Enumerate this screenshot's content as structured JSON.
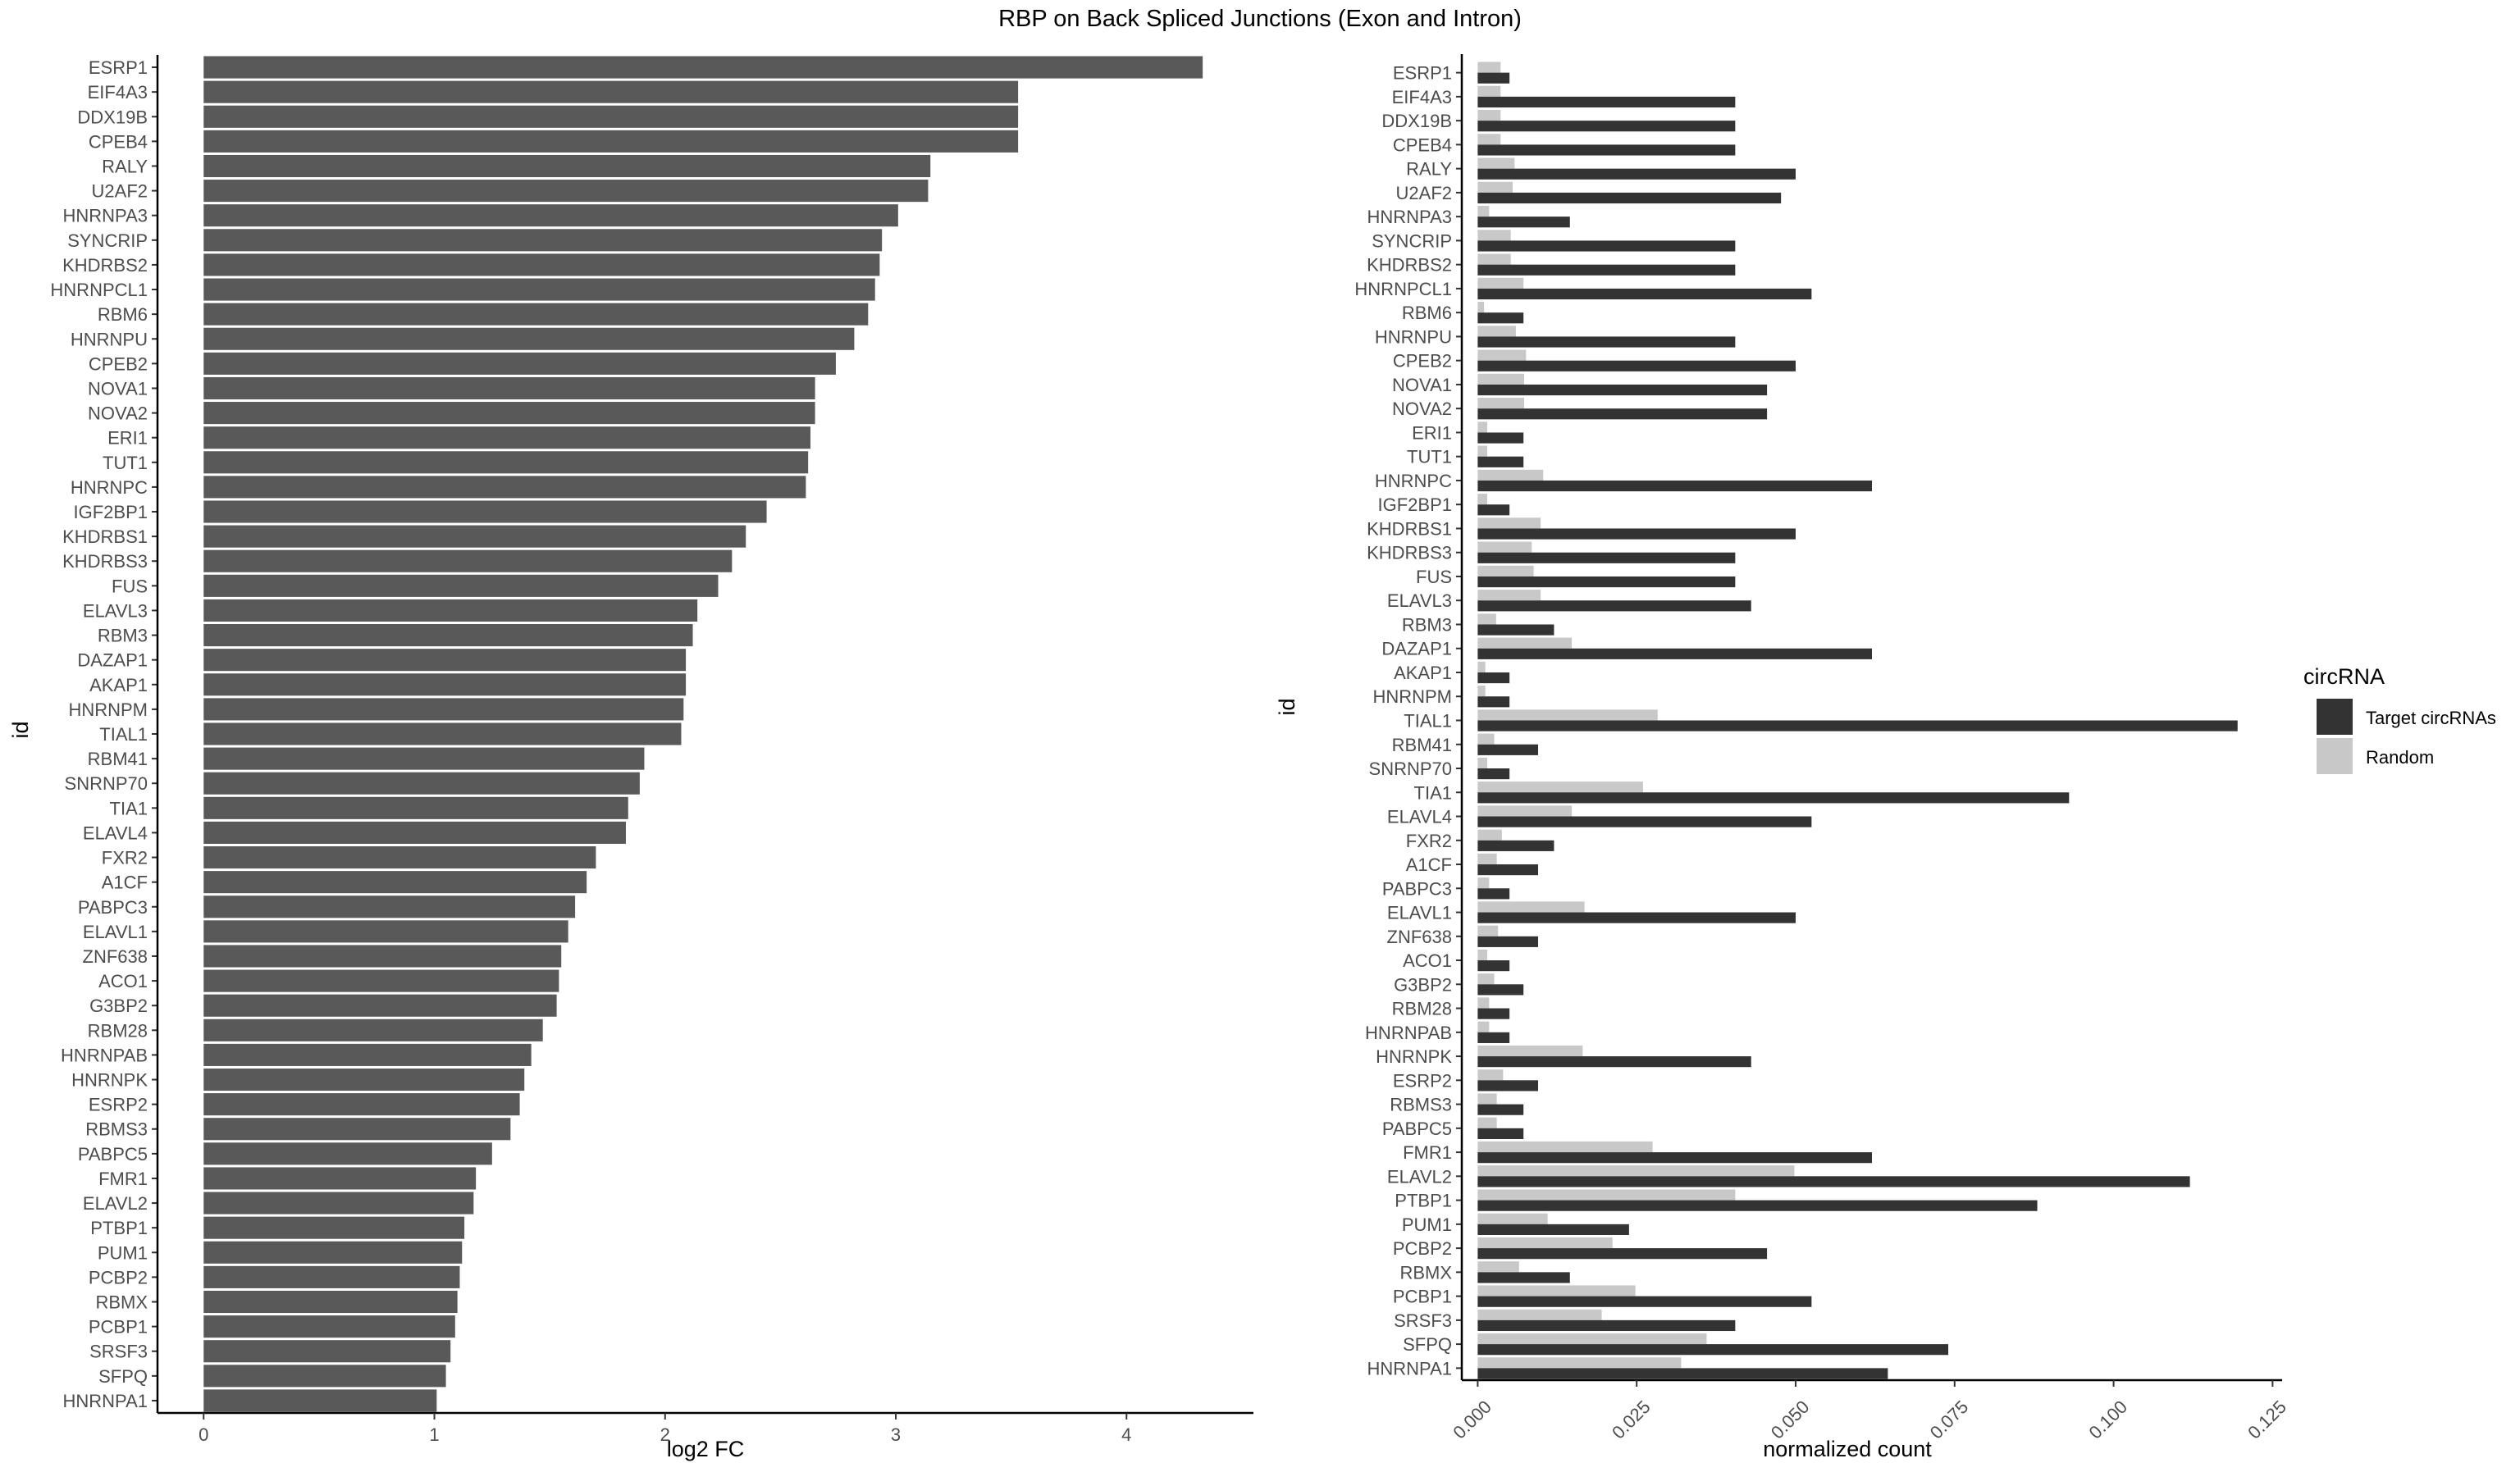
{
  "title": "RBP on Back Spliced Junctions (Exon and Intron)",
  "colors": {
    "bar_left": "#595959",
    "target": "#333333",
    "random": "#c8c8c8",
    "axis": "#000000",
    "tick_text": "#4d4d4d"
  },
  "chart_data": [
    {
      "type": "bar",
      "orientation": "horizontal",
      "xlabel": "log2 FC",
      "ylabel": "id",
      "xlim": [
        -0.2,
        4.55
      ],
      "xticks": [
        "0",
        "1",
        "2",
        "3",
        "4"
      ],
      "categories": [
        "ESRP1",
        "EIF4A3",
        "DDX19B",
        "CPEB4",
        "RALY",
        "U2AF2",
        "HNRNPA3",
        "SYNCRIP",
        "KHDRBS2",
        "HNRNPCL1",
        "RBM6",
        "HNRNPU",
        "CPEB2",
        "NOVA1",
        "NOVA2",
        "ERI1",
        "TUT1",
        "HNRNPC",
        "IGF2BP1",
        "KHDRBS1",
        "KHDRBS3",
        "FUS",
        "ELAVL3",
        "RBM3",
        "DAZAP1",
        "AKAP1",
        "HNRNPM",
        "TIAL1",
        "RBM41",
        "SNRNP70",
        "TIA1",
        "ELAVL4",
        "FXR2",
        "A1CF",
        "PABPC3",
        "ELAVL1",
        "ZNF638",
        "ACO1",
        "G3BP2",
        "RBM28",
        "HNRNPAB",
        "HNRNPK",
        "ESRP2",
        "RBMS3",
        "PABPC5",
        "FMR1",
        "ELAVL2",
        "PTBP1",
        "PUM1",
        "PCBP2",
        "RBMX",
        "PCBP1",
        "SRSF3",
        "SFPQ",
        "HNRNPA1"
      ],
      "values": [
        4.33,
        3.53,
        3.53,
        3.53,
        3.15,
        3.14,
        3.01,
        2.94,
        2.93,
        2.91,
        2.88,
        2.82,
        2.74,
        2.65,
        2.65,
        2.63,
        2.62,
        2.61,
        2.44,
        2.35,
        2.29,
        2.23,
        2.14,
        2.12,
        2.09,
        2.09,
        2.08,
        2.07,
        1.91,
        1.89,
        1.84,
        1.83,
        1.7,
        1.66,
        1.61,
        1.58,
        1.55,
        1.54,
        1.53,
        1.47,
        1.42,
        1.39,
        1.37,
        1.33,
        1.25,
        1.18,
        1.17,
        1.13,
        1.12,
        1.11,
        1.1,
        1.09,
        1.07,
        1.05,
        1.01
      ]
    },
    {
      "type": "bar",
      "orientation": "horizontal",
      "xlabel": "normalized count",
      "ylabel": "id",
      "xlim": [
        -0.0025,
        0.1265
      ],
      "xticks": [
        "0.000",
        "0.025",
        "0.050",
        "0.075",
        "0.100",
        "0.125"
      ],
      "legend": {
        "title": "circRNA",
        "position": "right"
      },
      "categories": [
        "ESRP1",
        "EIF4A3",
        "DDX19B",
        "CPEB4",
        "RALY",
        "U2AF2",
        "HNRNPA3",
        "SYNCRIP",
        "KHDRBS2",
        "HNRNPCL1",
        "RBM6",
        "HNRNPU",
        "CPEB2",
        "NOVA1",
        "NOVA2",
        "ERI1",
        "TUT1",
        "HNRNPC",
        "IGF2BP1",
        "KHDRBS1",
        "KHDRBS3",
        "FUS",
        "ELAVL3",
        "RBM3",
        "DAZAP1",
        "AKAP1",
        "HNRNPM",
        "TIAL1",
        "RBM41",
        "SNRNP70",
        "TIA1",
        "ELAVL4",
        "FXR2",
        "A1CF",
        "PABPC3",
        "ELAVL1",
        "ZNF638",
        "ACO1",
        "G3BP2",
        "RBM28",
        "HNRNPAB",
        "HNRNPK",
        "ESRP2",
        "RBMS3",
        "PABPC5",
        "FMR1",
        "ELAVL2",
        "PTBP1",
        "PUM1",
        "PCBP2",
        "RBMX",
        "PCBP1",
        "SRSF3",
        "SFPQ",
        "HNRNPA1"
      ],
      "series": [
        {
          "name": "Target circRNAs",
          "values": [
            0.005,
            0.0405,
            0.0405,
            0.0405,
            0.05,
            0.0477,
            0.0145,
            0.0405,
            0.0405,
            0.0525,
            0.0072,
            0.0405,
            0.05,
            0.0455,
            0.0455,
            0.0072,
            0.0072,
            0.062,
            0.005,
            0.05,
            0.0405,
            0.0405,
            0.043,
            0.012,
            0.062,
            0.005,
            0.005,
            0.1195,
            0.0095,
            0.005,
            0.093,
            0.0525,
            0.012,
            0.0095,
            0.005,
            0.05,
            0.0095,
            0.005,
            0.0072,
            0.005,
            0.005,
            0.043,
            0.0095,
            0.0072,
            0.0072,
            0.062,
            0.112,
            0.088,
            0.0238,
            0.0455,
            0.0145,
            0.0525,
            0.0405,
            0.074,
            0.0645
          ]
        },
        {
          "name": "Random",
          "values": [
            0.0036,
            0.0036,
            0.0036,
            0.0036,
            0.0058,
            0.0055,
            0.0018,
            0.0052,
            0.0052,
            0.0072,
            0.001,
            0.006,
            0.0076,
            0.0073,
            0.0073,
            0.0015,
            0.0015,
            0.0103,
            0.0015,
            0.0099,
            0.0085,
            0.0088,
            0.0099,
            0.0029,
            0.0148,
            0.0012,
            0.0012,
            0.0283,
            0.0026,
            0.0015,
            0.026,
            0.0148,
            0.0038,
            0.003,
            0.0018,
            0.0168,
            0.0032,
            0.0015,
            0.0026,
            0.0018,
            0.0018,
            0.0165,
            0.004,
            0.003,
            0.003,
            0.0275,
            0.0498,
            0.0405,
            0.011,
            0.0212,
            0.0065,
            0.0248,
            0.0195,
            0.036,
            0.032
          ]
        }
      ]
    }
  ]
}
